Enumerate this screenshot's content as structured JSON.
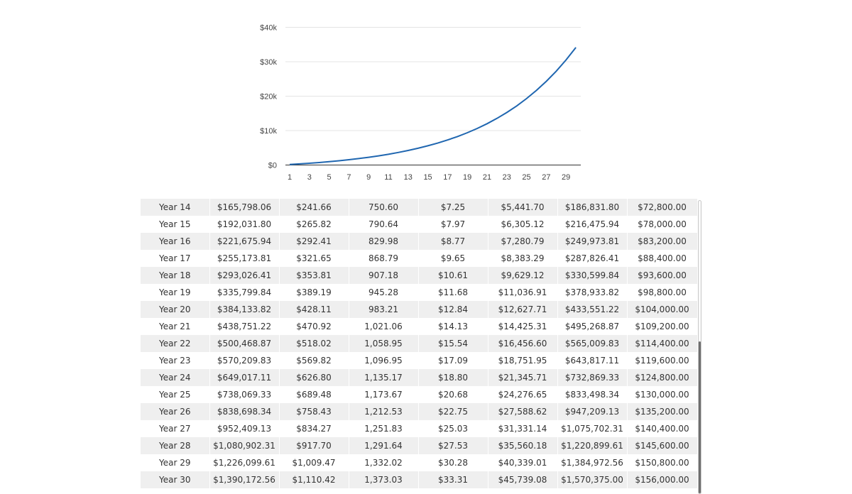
{
  "chart_data": {
    "type": "line",
    "x": [
      1,
      2,
      3,
      4,
      5,
      6,
      7,
      8,
      9,
      10,
      11,
      12,
      13,
      14,
      15,
      16,
      17,
      18,
      19,
      20,
      21,
      22,
      23,
      24,
      25,
      26,
      27,
      28,
      29,
      30
    ],
    "series": [
      {
        "values": [
          150,
          320,
          510,
          730,
          970,
          1240,
          1540,
          1880,
          2250,
          2660,
          3120,
          3640,
          4220,
          4860,
          5580,
          6380,
          7270,
          8270,
          9380,
          10620,
          12000,
          13540,
          15250,
          17160,
          19290,
          21660,
          24300,
          27240,
          30510,
          34150
        ]
      }
    ],
    "x_ticks": [
      "1",
      "3",
      "5",
      "7",
      "9",
      "11",
      "13",
      "15",
      "17",
      "19",
      "21",
      "23",
      "25",
      "27",
      "29"
    ],
    "y_ticks": [
      "$0",
      "$10k",
      "$20k",
      "$30k",
      "$40k"
    ],
    "ylim": [
      0,
      40000
    ],
    "grid": true,
    "line_color": "#1f66b0"
  },
  "table": {
    "rows": [
      [
        "Year 14",
        "$165,798.06",
        "$241.66",
        "750.60",
        "$7.25",
        "$5,441.70",
        "$186,831.80",
        "$72,800.00"
      ],
      [
        "Year 15",
        "$192,031.80",
        "$265.82",
        "790.64",
        "$7.97",
        "$6,305.12",
        "$216,475.94",
        "$78,000.00"
      ],
      [
        "Year 16",
        "$221,675.94",
        "$292.41",
        "829.98",
        "$8.77",
        "$7,280.79",
        "$249,973.81",
        "$83,200.00"
      ],
      [
        "Year 17",
        "$255,173.81",
        "$321.65",
        "868.79",
        "$9.65",
        "$8,383.29",
        "$287,826.41",
        "$88,400.00"
      ],
      [
        "Year 18",
        "$293,026.41",
        "$353.81",
        "907.18",
        "$10.61",
        "$9,629.12",
        "$330,599.84",
        "$93,600.00"
      ],
      [
        "Year 19",
        "$335,799.84",
        "$389.19",
        "945.28",
        "$11.68",
        "$11,036.91",
        "$378,933.82",
        "$98,800.00"
      ],
      [
        "Year 20",
        "$384,133.82",
        "$428.11",
        "983.21",
        "$12.84",
        "$12,627.71",
        "$433,551.22",
        "$104,000.00"
      ],
      [
        "Year 21",
        "$438,751.22",
        "$470.92",
        "1,021.06",
        "$14.13",
        "$14,425.31",
        "$495,268.87",
        "$109,200.00"
      ],
      [
        "Year 22",
        "$500,468.87",
        "$518.02",
        "1,058.95",
        "$15.54",
        "$16,456.60",
        "$565,009.83",
        "$114,400.00"
      ],
      [
        "Year 23",
        "$570,209.83",
        "$569.82",
        "1,096.95",
        "$17.09",
        "$18,751.95",
        "$643,817.11",
        "$119,600.00"
      ],
      [
        "Year 24",
        "$649,017.11",
        "$626.80",
        "1,135.17",
        "$18.80",
        "$21,345.71",
        "$732,869.33",
        "$124,800.00"
      ],
      [
        "Year 25",
        "$738,069.33",
        "$689.48",
        "1,173.67",
        "$20.68",
        "$24,276.65",
        "$833,498.34",
        "$130,000.00"
      ],
      [
        "Year 26",
        "$838,698.34",
        "$758.43",
        "1,212.53",
        "$22.75",
        "$27,588.62",
        "$947,209.13",
        "$135,200.00"
      ],
      [
        "Year 27",
        "$952,409.13",
        "$834.27",
        "1,251.83",
        "$25.03",
        "$31,331.14",
        "$1,075,702.31",
        "$140,400.00"
      ],
      [
        "Year 28",
        "$1,080,902.31",
        "$917.70",
        "1,291.64",
        "$27.53",
        "$35,560.18",
        "$1,220,899.61",
        "$145,600.00"
      ],
      [
        "Year 29",
        "$1,226,099.61",
        "$1,009.47",
        "1,332.02",
        "$30.28",
        "$40,339.01",
        "$1,384,972.56",
        "$150,800.00"
      ],
      [
        "Year 30",
        "$1,390,172.56",
        "$1,110.42",
        "1,373.03",
        "$33.31",
        "$45,739.08",
        "$1,570,375.00",
        "$156,000.00"
      ]
    ]
  }
}
